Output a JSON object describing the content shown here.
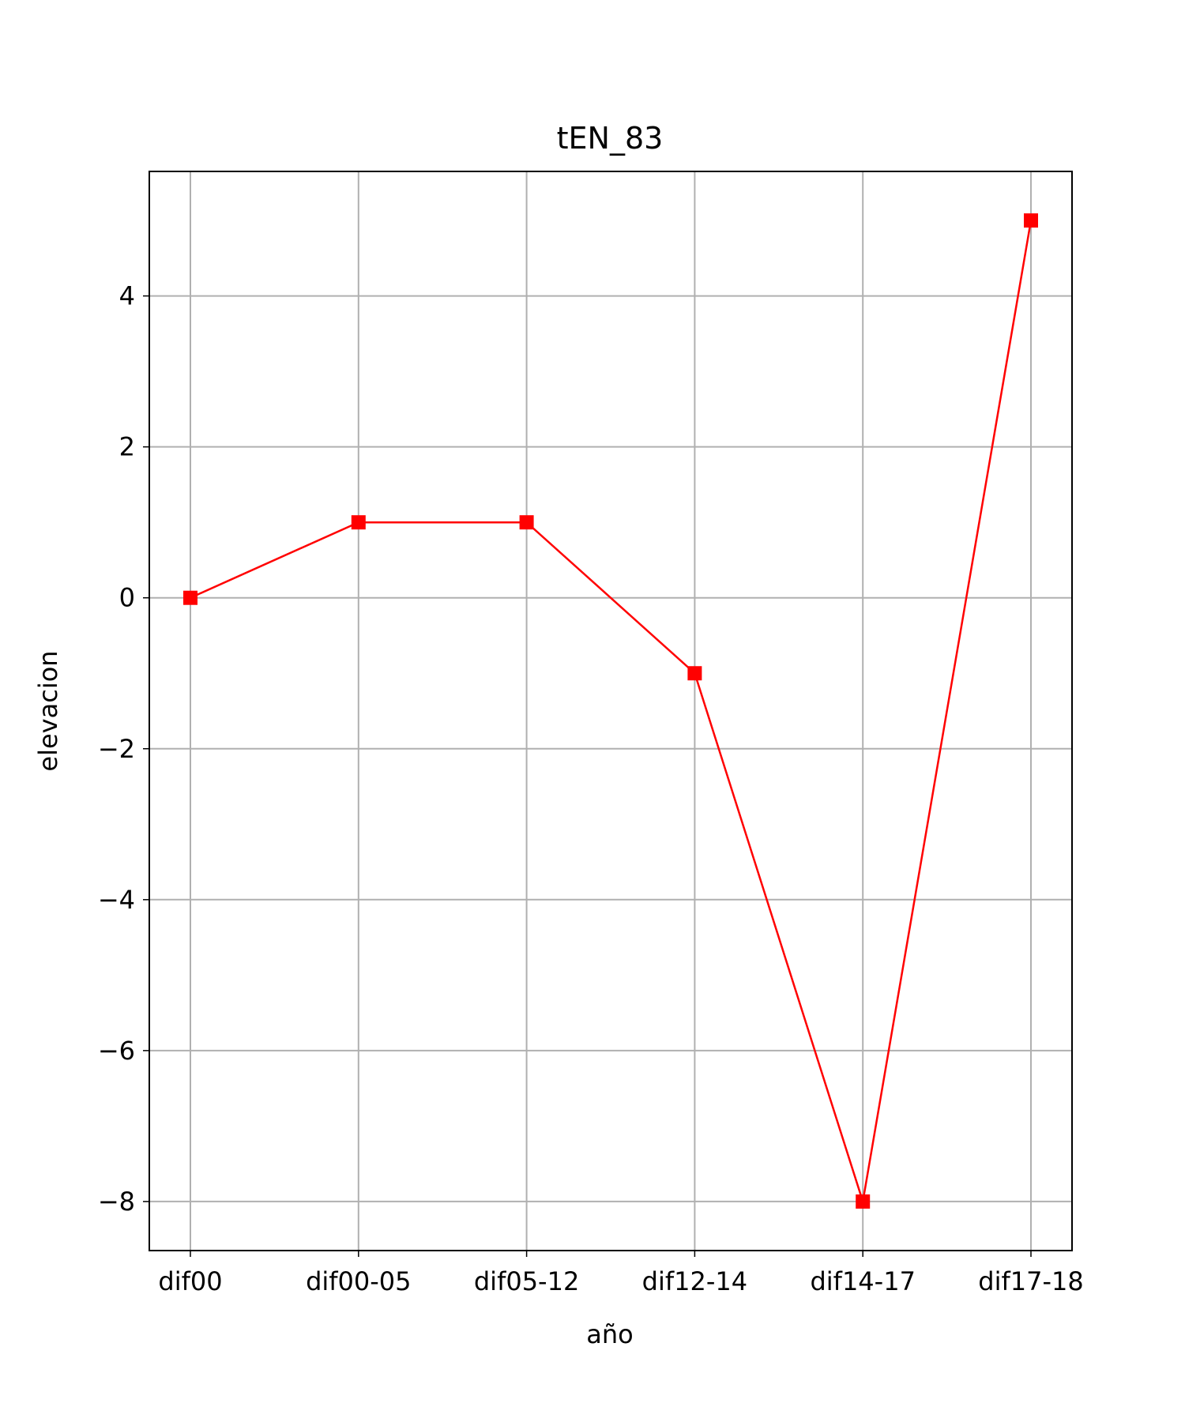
{
  "chart_data": {
    "type": "line",
    "title": "tEN_83",
    "xlabel": "año",
    "ylabel": "elevacion",
    "categories": [
      "dif00",
      "dif00-05",
      "dif05-12",
      "dif12-14",
      "dif14-17",
      "dif17-18"
    ],
    "series": [
      {
        "values": [
          0,
          1,
          1,
          -1,
          -8,
          5
        ],
        "color": "#ff0000",
        "marker": "square"
      }
    ],
    "yticks": [
      -8,
      -6,
      -4,
      -2,
      0,
      2,
      4
    ],
    "ytick_labels": [
      "−8",
      "−6",
      "−4",
      "−2",
      "0",
      "2",
      "4"
    ],
    "ylim": [
      -8.65,
      5.65
    ],
    "grid": true,
    "legend": false
  }
}
